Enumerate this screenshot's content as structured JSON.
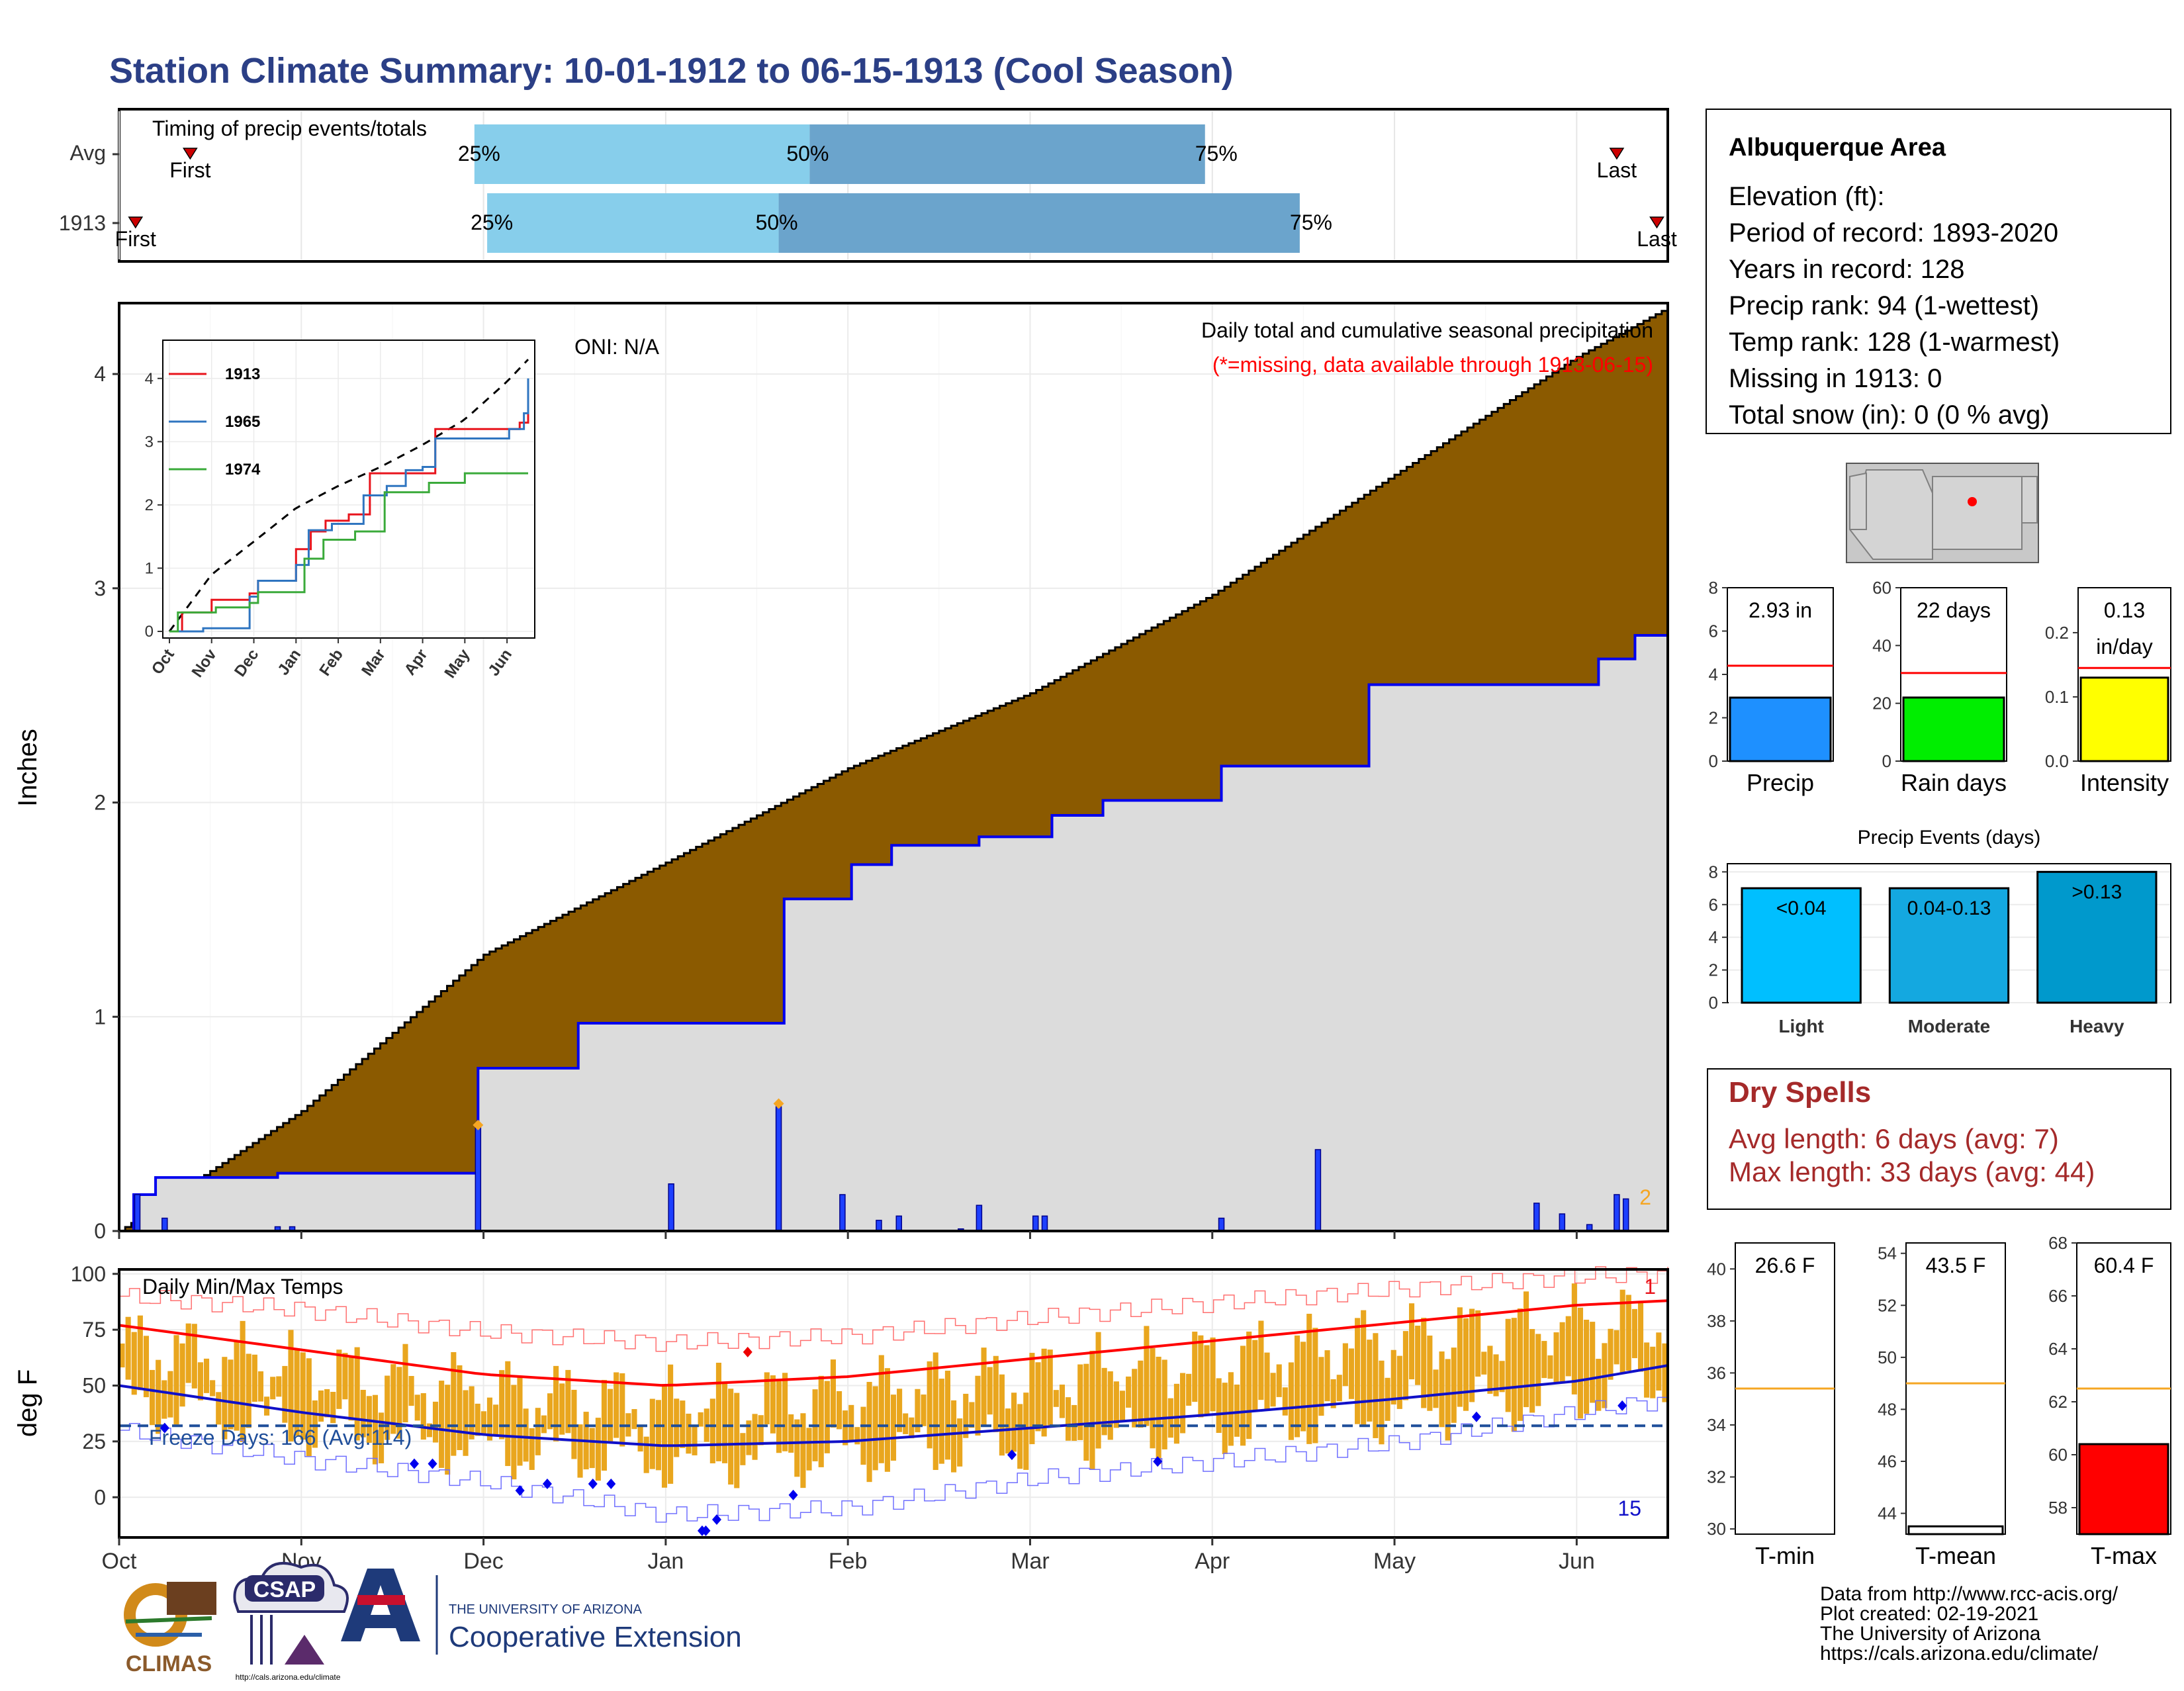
{
  "title": "Station Climate Summary: 10-01-1912 to 06-15-1913 (Cool Season)",
  "colors": {
    "title": "#2b3f86",
    "cumulative_normal": "#8b5a00",
    "cumulative_obs_fill": "#dcdcdc",
    "cumulative_obs_line": "#0000ee",
    "daily_bar": "#1e40ff",
    "marker_orange": "#f5a623",
    "q_light": "#87ceeb",
    "q_dark": "#6ba4cc",
    "temp_bar": "#e9a61e",
    "tmax_avg": "#ff0000",
    "tmin_avg": "#1010c8",
    "freeze_line": "#1f4e9a",
    "dry_spells": "#a52a2a"
  },
  "timing": {
    "label": "Timing of precip events/totals",
    "rows": [
      {
        "name": "Avg",
        "first_label": "First",
        "last_label": "Last",
        "first": 0.39,
        "last": 8.22,
        "q25": 1.95,
        "q50": 3.79,
        "q75": 5.96,
        "q25_label": "25%",
        "q50_label": "50%",
        "q75_label": "75%"
      },
      {
        "name": "1913",
        "first_label": "First",
        "last_label": "Last",
        "first": 0.09,
        "last": 8.44,
        "q25": 2.02,
        "q50": 3.62,
        "q75": 6.48,
        "q25_label": "25%",
        "q50_label": "50%",
        "q75_label": "75%"
      }
    ]
  },
  "main_chart": {
    "ylabel": "Inches",
    "ylim": [
      0,
      4.3
    ],
    "yticks": [
      "0",
      "1",
      "2",
      "3",
      "4"
    ],
    "x_months": [
      "Oct",
      "Nov",
      "Dec",
      "Jan",
      "Feb",
      "Mar",
      "Apr",
      "May",
      "Jun"
    ],
    "oni_label": "ONI: N/A",
    "desc_line1": "Daily total and cumulative seasonal precipitation",
    "desc_line2": "(*=missing, data available through 1913-06-15)",
    "count_label": "2"
  },
  "chart_data": [
    {
      "type": "area",
      "title": "Daily total and cumulative seasonal precipitation",
      "ylabel": "Inches",
      "x_unit": "months since Oct 1 (0=Oct 1, 8.5=Jun 15)",
      "normal_cumulative": {
        "x": [
          0,
          1,
          2,
          3,
          4,
          5,
          6,
          7,
          8,
          8.5
        ],
        "y": [
          0,
          0.56,
          1.29,
          1.72,
          2.16,
          2.51,
          2.97,
          3.53,
          4.08,
          4.31
        ]
      },
      "observed_cumulative_steps": [
        [
          0,
          0
        ],
        [
          0.08,
          0.17
        ],
        [
          0.2,
          0.25
        ],
        [
          0.87,
          0.27
        ],
        [
          1.97,
          0.76
        ],
        [
          2.52,
          0.97
        ],
        [
          3.65,
          1.55
        ],
        [
          4.02,
          1.71
        ],
        [
          4.24,
          1.8
        ],
        [
          4.72,
          1.84
        ],
        [
          5.12,
          1.94
        ],
        [
          5.4,
          2.01
        ],
        [
          6.05,
          2.17
        ],
        [
          6.86,
          2.55
        ],
        [
          8.12,
          2.67
        ],
        [
          8.32,
          2.78
        ],
        [
          8.5,
          2.93
        ]
      ],
      "daily_bars": [
        [
          0.1,
          0.17
        ],
        [
          0.25,
          0.06
        ],
        [
          0.87,
          0.02
        ],
        [
          0.95,
          0.02
        ],
        [
          1.97,
          0.49
        ],
        [
          3.03,
          0.22
        ],
        [
          3.62,
          0.58
        ],
        [
          3.97,
          0.17
        ],
        [
          4.17,
          0.05
        ],
        [
          4.28,
          0.07
        ],
        [
          4.62,
          0.01
        ],
        [
          4.72,
          0.12
        ],
        [
          5.03,
          0.07
        ],
        [
          5.08,
          0.07
        ],
        [
          6.05,
          0.06
        ],
        [
          6.58,
          0.38
        ],
        [
          7.78,
          0.13
        ],
        [
          7.92,
          0.08
        ],
        [
          8.07,
          0.03
        ],
        [
          8.22,
          0.17
        ],
        [
          8.27,
          0.15
        ]
      ],
      "orange_markers": [
        [
          1.97,
          0.47
        ],
        [
          3.62,
          0.57
        ]
      ]
    },
    {
      "type": "line",
      "title": "cumulative inset",
      "x_months": [
        "Oct",
        "Nov",
        "Dec",
        "Jan",
        "Feb",
        "Mar",
        "Apr",
        "May",
        "Jun"
      ],
      "yticks": [
        0,
        1,
        2,
        3,
        4
      ],
      "ylim": [
        0,
        4.5
      ],
      "avg_dashed": {
        "x": [
          0,
          1,
          2,
          3,
          4,
          5,
          6,
          7,
          8,
          8.5
        ],
        "y": [
          0,
          0.9,
          1.42,
          1.95,
          2.3,
          2.6,
          2.95,
          3.35,
          3.95,
          4.3
        ]
      },
      "series": [
        {
          "name": "1913",
          "color": "#e8141c",
          "steps": [
            [
              0,
              0
            ],
            [
              0.3,
              0.3
            ],
            [
              1.0,
              0.5
            ],
            [
              1.9,
              0.6
            ],
            [
              2.1,
              0.8
            ],
            [
              3.0,
              1.3
            ],
            [
              3.35,
              1.58
            ],
            [
              3.7,
              1.75
            ],
            [
              4.25,
              1.85
            ],
            [
              4.75,
              2.5
            ],
            [
              6.0,
              2.5
            ],
            [
              6.3,
              3.2
            ],
            [
              8.3,
              3.3
            ],
            [
              8.5,
              3.5
            ]
          ]
        },
        {
          "name": "1965",
          "color": "#2f75c0",
          "steps": [
            [
              0,
              0
            ],
            [
              0.8,
              0.05
            ],
            [
              1.9,
              0.55
            ],
            [
              2.1,
              0.8
            ],
            [
              3.0,
              1.05
            ],
            [
              3.3,
              1.6
            ],
            [
              3.85,
              1.7
            ],
            [
              4.6,
              2.15
            ],
            [
              5.15,
              2.3
            ],
            [
              5.6,
              2.55
            ],
            [
              6.0,
              2.6
            ],
            [
              6.3,
              3.05
            ],
            [
              8.05,
              3.2
            ],
            [
              8.4,
              3.45
            ],
            [
              8.5,
              4.0
            ]
          ]
        },
        {
          "name": "1974",
          "color": "#3aaa3a",
          "steps": [
            [
              0,
              0
            ],
            [
              0.2,
              0.3
            ],
            [
              1.1,
              0.38
            ],
            [
              1.9,
              0.45
            ],
            [
              2.1,
              0.62
            ],
            [
              3.2,
              1.15
            ],
            [
              3.65,
              1.45
            ],
            [
              4.4,
              1.58
            ],
            [
              5.1,
              2.2
            ],
            [
              6.15,
              2.35
            ],
            [
              7.0,
              2.5
            ],
            [
              8.5,
              2.5
            ]
          ]
        }
      ]
    },
    {
      "type": "bar",
      "title": "Daily Min/Max Temps",
      "ylabel": "deg F",
      "yticks": [
        0,
        25,
        50,
        75,
        100
      ],
      "ylim": [
        -18,
        102
      ],
      "x_months": [
        "Oct",
        "Nov",
        "Dec",
        "Jan",
        "Feb",
        "Mar",
        "Apr",
        "May",
        "Jun"
      ],
      "freeze_label": "Freeze Days: 166 (Avg:114)",
      "count_top": "1",
      "count_bottom": "15",
      "tmax_avg": {
        "x": [
          0,
          1,
          2,
          3,
          4,
          5,
          6,
          7,
          8,
          8.5
        ],
        "y": [
          77,
          66,
          55,
          50,
          54,
          62,
          70,
          78,
          86,
          88
        ]
      },
      "tmin_avg": {
        "x": [
          0,
          1,
          2,
          3,
          4,
          5,
          6,
          7,
          8,
          8.5
        ],
        "y": [
          50,
          38,
          28,
          23,
          25,
          31,
          37,
          44,
          52,
          59
        ]
      },
      "tmax_record": {
        "x": [
          0,
          1,
          2,
          3,
          4,
          5,
          6,
          7,
          8,
          8.5
        ],
        "y": [
          90,
          84,
          74,
          69,
          72,
          80,
          87,
          93,
          99,
          100
        ]
      },
      "tmin_record": {
        "x": [
          0,
          1,
          2,
          3,
          4,
          5,
          6,
          7,
          8,
          8.5
        ],
        "y": [
          30,
          17,
          7,
          -8,
          -5,
          8,
          16,
          24,
          38,
          44
        ]
      },
      "freeze_line": 32,
      "blue_markers": [
        [
          0.25,
          31
        ],
        [
          1.62,
          15
        ],
        [
          1.72,
          15
        ],
        [
          2.2,
          3
        ],
        [
          2.35,
          6
        ],
        [
          2.6,
          6
        ],
        [
          2.7,
          6
        ],
        [
          3.2,
          -15
        ],
        [
          3.22,
          -15
        ],
        [
          3.28,
          -10
        ],
        [
          3.7,
          1
        ],
        [
          4.9,
          19
        ],
        [
          5.7,
          16
        ],
        [
          7.45,
          36
        ],
        [
          8.25,
          41
        ]
      ],
      "red_markers": [
        [
          3.45,
          65
        ]
      ]
    },
    {
      "type": "bar",
      "title": "Precip",
      "ylim": [
        0,
        8
      ],
      "yticks": [
        0,
        2,
        4,
        6,
        8
      ],
      "value": 2.93,
      "avg": 4.4,
      "value_label": "2.93 in",
      "xlabel": "Precip",
      "color": "#1e90ff"
    },
    {
      "type": "bar",
      "title": "Rain days",
      "ylim": [
        0,
        60
      ],
      "yticks": [
        0,
        20,
        40,
        60
      ],
      "value": 22,
      "avg": 30.5,
      "value_label": "22 days",
      "xlabel": "Rain days",
      "color": "#00ee00"
    },
    {
      "type": "bar",
      "title": "Intensity",
      "ylim": [
        0,
        0.27
      ],
      "yticks": [
        0.0,
        0.1,
        0.2
      ],
      "value": 0.13,
      "avg": 0.145,
      "value_label": "0.13",
      "value_label2": "in/day",
      "xlabel": "Intensity",
      "color": "#ffff00"
    },
    {
      "type": "bar",
      "title": "Precip Events (days)",
      "ylim": [
        0,
        8.5
      ],
      "yticks": [
        0,
        2,
        4,
        6,
        8
      ],
      "categories": [
        "Light",
        "Moderate",
        "Heavy"
      ],
      "values": [
        7,
        7,
        8
      ],
      "labels": [
        "<0.04",
        "0.04-0.13",
        ">0.13"
      ],
      "colors": [
        "#00bfff",
        "#14a8e0",
        "#0099cc"
      ]
    },
    {
      "type": "bar",
      "title": "T-min",
      "ylim": [
        29.8,
        41
      ],
      "yticks": [
        30,
        32,
        34,
        36,
        38,
        40
      ],
      "value": 26.6,
      "avg": 35.4,
      "value_label": "26.6 F",
      "xlabel": "T-min",
      "color": "#ffffff"
    },
    {
      "type": "bar",
      "title": "T-mean",
      "ylim": [
        43.2,
        54.4
      ],
      "yticks": [
        44,
        46,
        48,
        50,
        52,
        54
      ],
      "value": 43.5,
      "avg": 49.0,
      "value_label": "43.5 F",
      "xlabel": "T-mean",
      "color": "#ffffff"
    },
    {
      "type": "bar",
      "title": "T-max",
      "ylim": [
        57.0,
        68
      ],
      "yticks": [
        58,
        60,
        62,
        64,
        66,
        68
      ],
      "value": 60.4,
      "avg": 62.5,
      "value_label": "60.4 F",
      "xlabel": "T-max",
      "color": "#ff0000"
    }
  ],
  "station": {
    "name": "Albuquerque Area",
    "lines": [
      "Elevation (ft):",
      "Period of record: 1893-2020",
      "Years in record: 128",
      "Precip rank: 94 (1-wettest)",
      "Temp rank: 128 (1-warmest)",
      "Missing in 1913: 0",
      "Total snow (in): 0 (0 % avg)"
    ]
  },
  "dry_spells": {
    "title": "Dry Spells",
    "avg_line": "Avg length: 6 days (avg: 7)",
    "max_line": "Max length: 33 days (avg: 44)"
  },
  "footer": {
    "lines": [
      "Data from http://www.rcc-acis.org/",
      "Plot created: 02-19-2021",
      "The University of Arizona",
      "https://cals.arizona.edu/climate/"
    ],
    "climas": "CLIMAS",
    "csap": "CSAP",
    "csap_url": "http://cals.arizona.edu/climate",
    "ua_small": "THE UNIVERSITY OF ARIZONA",
    "ua_big": "Cooperative Extension"
  }
}
